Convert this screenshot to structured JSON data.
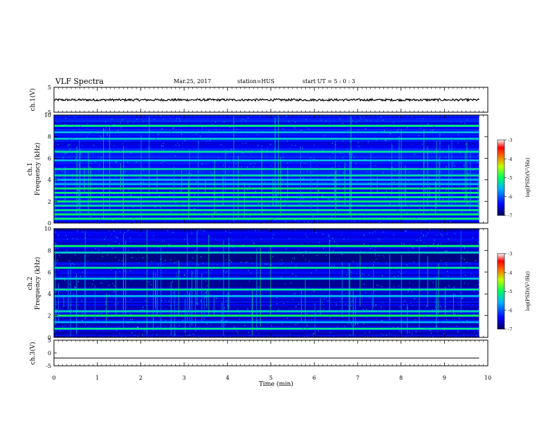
{
  "header": {
    "title": "VLF Spectra",
    "date": "Mar.25, 2017",
    "station": "station=HUS",
    "start": "start  UT =   5 : 0  : 3"
  },
  "colorbar": {
    "label": "log(PSD)(V²/Hz)",
    "ticks": [
      "-3",
      "-4",
      "-5",
      "-6",
      "-7"
    ],
    "range": [
      -7,
      -3
    ]
  },
  "chart_data": [
    {
      "type": "line",
      "panel": "ch1-waveform",
      "ylabel": "ch.1(V)",
      "ylim": [
        -5,
        5
      ],
      "yticks": [
        "5",
        "-5"
      ],
      "series": [
        {
          "values_summary": "noisy trace centered near 0 V, amplitude ~0.5 V"
        }
      ]
    },
    {
      "type": "heatmap",
      "panel": "ch1-spectrogram",
      "ylabel": "ch.1\nFrequency (kHz)",
      "ylabel_lines": [
        "ch.1",
        "Frequency (kHz)"
      ],
      "ylim": [
        0,
        10
      ],
      "yticks": [
        "0",
        "2",
        "4",
        "6",
        "8",
        "10"
      ],
      "bands_khz": [
        0.4,
        0.8,
        1.2,
        1.6,
        2.0,
        2.4,
        2.8,
        3.2,
        3.6,
        4.0,
        4.4,
        5.0,
        5.8,
        6.6,
        7.8,
        8.4,
        9.0
      ]
    },
    {
      "type": "heatmap",
      "panel": "ch2-spectrogram",
      "ylabel_lines": [
        "ch.2",
        "Frequency (kHz)"
      ],
      "ylim": [
        0,
        10
      ],
      "yticks": [
        "0",
        "2",
        "4",
        "6",
        "8",
        "10"
      ],
      "bands_khz": [
        0.8,
        1.4,
        2.0,
        2.4,
        3.8,
        4.4,
        5.4,
        6.4,
        7.8,
        8.4
      ]
    },
    {
      "type": "line",
      "panel": "ch3-waveform",
      "ylabel": "ch.3(V)",
      "ylim": [
        -5,
        5
      ],
      "yticks": [
        "5",
        "0",
        "-5"
      ],
      "series": [
        {
          "values_summary": "flat line at about -2 V"
        }
      ]
    }
  ],
  "xaxis": {
    "label": "Time  (min)",
    "range": [
      0,
      10
    ],
    "ticks": [
      "0",
      "1",
      "2",
      "3",
      "4",
      "5",
      "6",
      "7",
      "8",
      "9",
      "10"
    ]
  }
}
